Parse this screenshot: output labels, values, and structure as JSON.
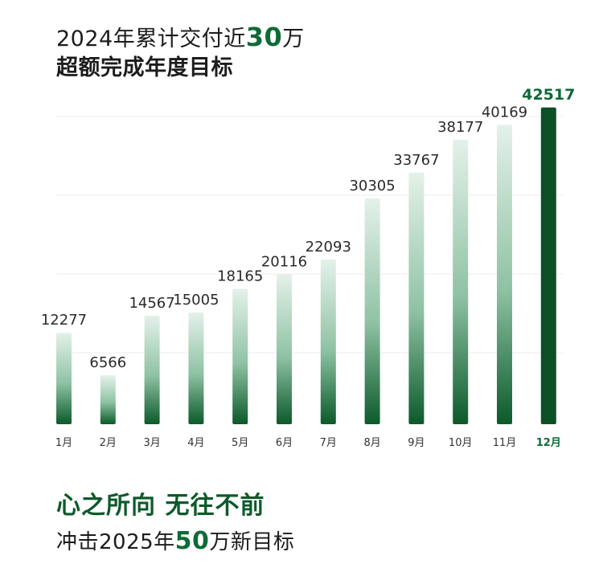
{
  "header": {
    "line1_pre": "2024年累计交付近",
    "line1_num": "30",
    "line1_post": "万",
    "line2": "超额完成年度目标"
  },
  "footer": {
    "slogan": "心之所向 无往不前",
    "goal_pre": "冲击2025年",
    "goal_num": "50",
    "goal_post": "万新目标"
  },
  "colors": {
    "accent": "#0e6a36",
    "bar_dark": "#0b5a2a",
    "bar_highlight": "#0d4f27",
    "bar_light": "#e4f1ea",
    "grid": "#eeeeee"
  },
  "chart_data": {
    "type": "bar",
    "categories": [
      "1月",
      "2月",
      "3月",
      "4月",
      "5月",
      "6月",
      "7月",
      "8月",
      "9月",
      "10月",
      "11月",
      "12月"
    ],
    "values": [
      12277,
      6566,
      14567,
      15005,
      18165,
      20116,
      22093,
      30305,
      33767,
      38177,
      40169,
      42517
    ],
    "value_labels": [
      "12277",
      "6566",
      "14567",
      "15005",
      "18165",
      "20116",
      "22093",
      "30305",
      "33767",
      "38177",
      "40169",
      "42517"
    ],
    "highlight_index": 11,
    "title": "",
    "xlabel": "",
    "ylabel": "",
    "ylim": [
      0,
      44000
    ],
    "grid": true
  }
}
